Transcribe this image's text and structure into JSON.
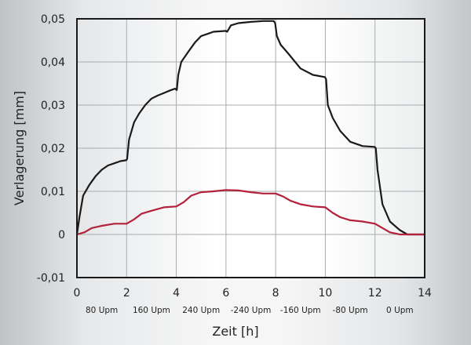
{
  "chart_data": {
    "type": "line",
    "title": "",
    "xlabel": "Zeit [h]",
    "ylabel": "Verlagerung [mm]",
    "xlim": [
      0,
      14
    ],
    "ylim": [
      -0.01,
      0.05
    ],
    "xticks": [
      "0",
      "2",
      "4",
      "6",
      "8",
      "10",
      "12",
      "14"
    ],
    "yticks": [
      "0,05",
      "0,04",
      "0,03",
      "0,02",
      "0,01",
      "0",
      "-0,01"
    ],
    "speed_labels": [
      "80 Upm",
      "160 Upm",
      "240 Upm",
      "-240 Upm",
      "-160 Upm",
      "-80 Upm",
      "0 Upm"
    ],
    "grid": true,
    "series": [
      {
        "color": "#1a1a1a",
        "x": [
          0,
          0.1,
          0.25,
          0.5,
          0.75,
          1,
          1.25,
          1.5,
          1.75,
          1.98,
          2.02,
          2.1,
          2.3,
          2.5,
          2.75,
          3,
          3.25,
          3.5,
          3.75,
          3.95,
          4.02,
          4.08,
          4.2,
          4.5,
          4.75,
          5,
          5.25,
          5.5,
          6,
          6.05,
          6.2,
          6.5,
          7,
          7.5,
          7.92,
          7.98,
          8.05,
          8.2,
          8.5,
          9,
          9.5,
          9.98,
          10.03,
          10.1,
          10.3,
          10.6,
          11,
          11.5,
          11.98,
          12.03,
          12.1,
          12.3,
          12.6,
          13,
          13.3,
          14
        ],
        "y": [
          0,
          0.004,
          0.009,
          0.0115,
          0.0135,
          0.015,
          0.016,
          0.0165,
          0.017,
          0.0172,
          0.0175,
          0.022,
          0.026,
          0.028,
          0.03,
          0.0315,
          0.0322,
          0.0328,
          0.0334,
          0.0338,
          0.0335,
          0.037,
          0.04,
          0.0425,
          0.0445,
          0.046,
          0.0465,
          0.047,
          0.0472,
          0.047,
          0.0485,
          0.049,
          0.0493,
          0.0495,
          0.0495,
          0.049,
          0.046,
          0.044,
          0.042,
          0.0385,
          0.037,
          0.0365,
          0.036,
          0.03,
          0.027,
          0.024,
          0.0215,
          0.0205,
          0.0203,
          0.02,
          0.015,
          0.007,
          0.003,
          0.001,
          0.0,
          0
        ]
      },
      {
        "color": "#b3213b",
        "x": [
          0,
          0.3,
          0.6,
          1,
          1.5,
          2,
          2.3,
          2.6,
          3,
          3.5,
          4,
          4.3,
          4.6,
          5,
          5.5,
          6,
          6.5,
          7,
          7.5,
          8,
          8.3,
          8.6,
          9,
          9.5,
          10,
          10.3,
          10.6,
          11,
          11.5,
          12,
          12.3,
          12.6,
          13,
          14
        ],
        "y": [
          0,
          0.0005,
          0.0015,
          0.002,
          0.0025,
          0.0025,
          0.0035,
          0.0048,
          0.0055,
          0.0063,
          0.0065,
          0.0075,
          0.009,
          0.0098,
          0.01,
          0.0103,
          0.0102,
          0.0098,
          0.0095,
          0.0095,
          0.0088,
          0.0078,
          0.007,
          0.0065,
          0.0063,
          0.005,
          0.004,
          0.0033,
          0.003,
          0.0025,
          0.0015,
          0.0005,
          0,
          0
        ]
      }
    ]
  }
}
